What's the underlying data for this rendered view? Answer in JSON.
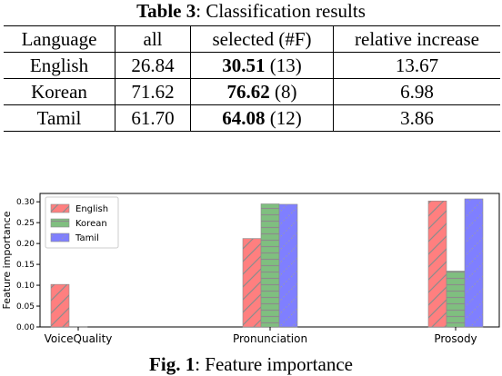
{
  "table": {
    "caption_label": "Table 3",
    "caption_text": ": Classification results",
    "headers": [
      "Language",
      "all",
      "selected (#F)",
      "relative increase"
    ],
    "rows": [
      {
        "language": "English",
        "all": "26.84",
        "selected": "30.51",
        "num_features": "(13)",
        "relative_increase": "13.67"
      },
      {
        "language": "Korean",
        "all": "71.62",
        "selected": "76.62",
        "num_features": "(8)",
        "relative_increase": "6.98"
      },
      {
        "language": "Tamil",
        "all": "61.70",
        "selected": "64.08",
        "num_features": "(12)",
        "relative_increase": "3.86"
      }
    ]
  },
  "figure": {
    "caption_label": "Fig. 1",
    "caption_text": ": Feature importance"
  },
  "chart_data": {
    "type": "bar",
    "categories": [
      "VoiceQuality",
      "Pronunciation",
      "Prosody"
    ],
    "series": [
      {
        "name": "English",
        "values": [
          0.102,
          0.212,
          0.302
        ],
        "color": "#ff7f7f",
        "hatch": "diagonal"
      },
      {
        "name": "Korean",
        "values": [
          0.001,
          0.295,
          0.134
        ],
        "color": "#7fbf7f",
        "hatch": "horizontal"
      },
      {
        "name": "Tamil",
        "values": [
          0.0,
          0.294,
          0.307
        ],
        "color": "#7f7fff",
        "hatch": "dots"
      }
    ],
    "ylabel": "Feature importance",
    "xlabel": "",
    "title": "",
    "ylim": [
      0,
      0.32
    ],
    "yticks": [
      "0.00",
      "0.05",
      "0.10",
      "0.15",
      "0.20",
      "0.25",
      "0.30"
    ],
    "legend_position": "top-left",
    "grid": false
  }
}
